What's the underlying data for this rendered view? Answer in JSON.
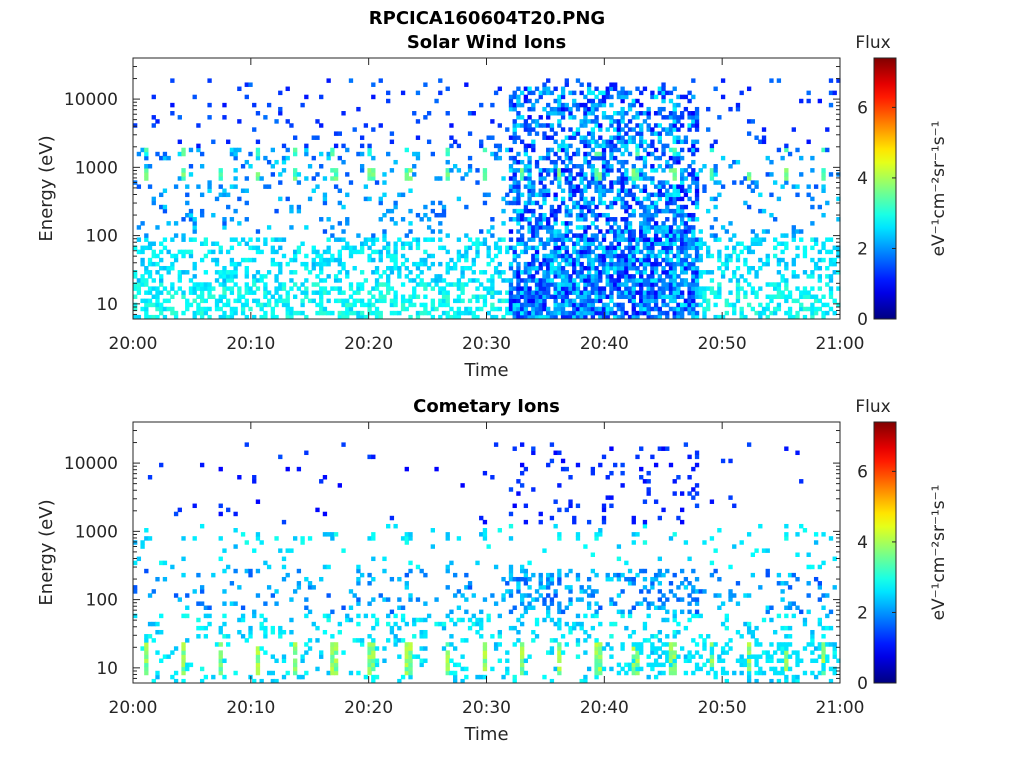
{
  "figure": {
    "title": "RPCICA160604T20.PNG"
  },
  "chart_data": [
    {
      "type": "heatmap",
      "title": "Solar Wind Ions",
      "xlabel": "Time",
      "ylabel": "Energy (eV)",
      "y_scale": "log",
      "ylim": [
        6,
        40000
      ],
      "xlim": [
        "20:00",
        "21:00"
      ],
      "x_ticks": [
        "20:00",
        "20:10",
        "20:20",
        "20:30",
        "20:40",
        "20:50",
        "21:00"
      ],
      "y_ticks": [
        "10",
        "100",
        "1000",
        "10000"
      ],
      "colorbar": {
        "label": "Flux",
        "units": "eV⁻¹cm⁻²sr⁻¹s⁻¹",
        "min": 0,
        "max": 7.4,
        "ticks": [
          "0",
          "2",
          "4",
          "6"
        ],
        "colormap": "jet"
      },
      "features": [
        {
          "description": "periodic hot spots",
          "energy_eV": 800,
          "flux": 3.5,
          "period_min": 3.2
        },
        {
          "description": "dense flux region",
          "time_range": [
            "20:33",
            "20:48"
          ],
          "energy_eV": [
            10,
            20000
          ],
          "flux": [
            0.8,
            2.5
          ]
        }
      ]
    },
    {
      "type": "heatmap",
      "title": "Cometary Ions",
      "xlabel": "Time",
      "ylabel": "Energy (eV)",
      "y_scale": "log",
      "ylim": [
        6,
        40000
      ],
      "xlim": [
        "20:00",
        "21:00"
      ],
      "x_ticks": [
        "20:00",
        "20:10",
        "20:20",
        "20:30",
        "20:40",
        "20:50",
        "21:00"
      ],
      "y_ticks": [
        "10",
        "100",
        "1000",
        "10000"
      ],
      "colorbar": {
        "label": "Flux",
        "units": "eV⁻¹cm⁻²sr⁻¹s⁻¹",
        "min": 0,
        "max": 7.4,
        "ticks": [
          "0",
          "2",
          "4",
          "6"
        ],
        "colormap": "jet"
      },
      "features": [
        {
          "description": "low energy bands",
          "energy_eV": [
            8,
            20
          ],
          "flux": [
            2.5,
            4.2
          ],
          "period_min": 3.2
        },
        {
          "description": "sparse mid energy",
          "energy_eV": [
            100,
            1000
          ],
          "flux": [
            1,
            2.5
          ]
        }
      ]
    }
  ]
}
